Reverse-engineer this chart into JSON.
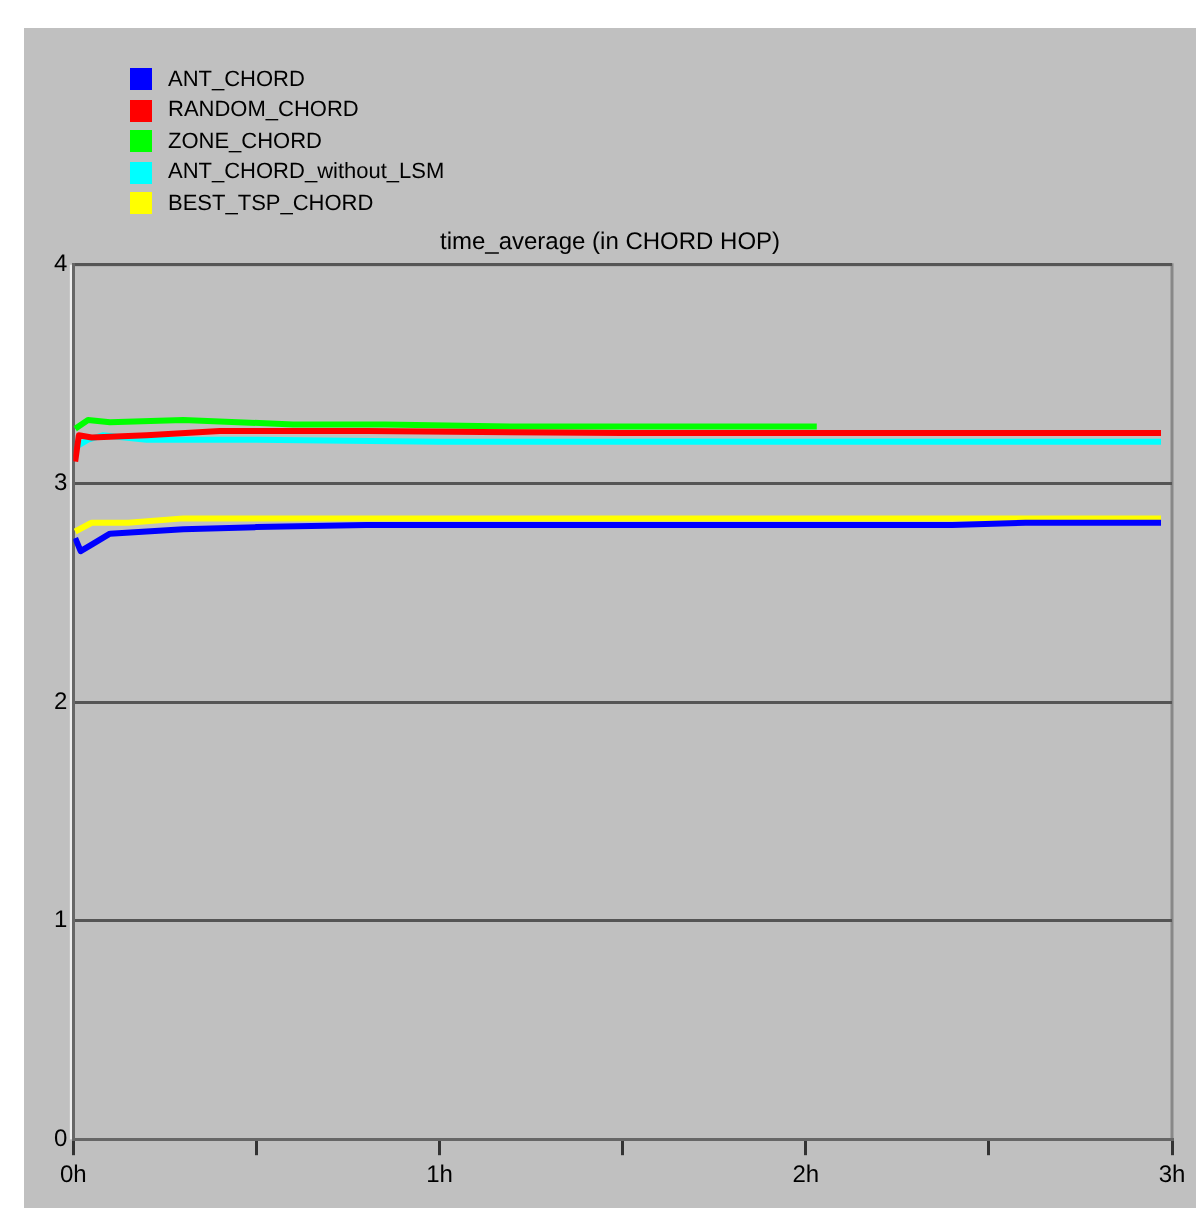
{
  "chart_data": {
    "type": "line",
    "title": "time_average (in CHORD HOP)",
    "legend": "top left",
    "grid": "y",
    "marker": "none",
    "line_style": "solid",
    "xlim": [
      0,
      3
    ],
    "xticks": [
      {
        "value": 0,
        "label": "0h"
      },
      {
        "value": 0.5,
        "label": null
      },
      {
        "value": 1,
        "label": "1h"
      },
      {
        "value": 1.5,
        "label": null
      },
      {
        "value": 2,
        "label": "2h"
      },
      {
        "value": 2.5,
        "label": null
      },
      {
        "value": 3,
        "label": "3h"
      }
    ],
    "ylim": [
      0,
      4
    ],
    "yticks": [
      0,
      1,
      2,
      3,
      4
    ],
    "series": [
      {
        "name": "ANT_CHORD",
        "color": "#0000ff",
        "x": [
          0.005,
          0.02,
          0.05,
          0.1,
          0.2,
          0.3,
          0.5,
          0.8,
          2.4,
          2.6,
          2.97
        ],
        "values": [
          2.75,
          2.69,
          2.72,
          2.77,
          2.78,
          2.79,
          2.8,
          2.81,
          2.81,
          2.82,
          2.82
        ]
      },
      {
        "name": "RANDOM_CHORD",
        "color": "#ff0000",
        "x": [
          0.005,
          0.015,
          0.05,
          0.2,
          0.4,
          0.8,
          1.5,
          2.97
        ],
        "values": [
          3.1,
          3.22,
          3.21,
          3.22,
          3.24,
          3.24,
          3.23,
          3.23
        ]
      },
      {
        "name": "ZONE_CHORD",
        "color": "#00ff00",
        "x": [
          0.005,
          0.04,
          0.1,
          0.3,
          0.6,
          0.85,
          1.2,
          2.03
        ],
        "values": [
          3.25,
          3.29,
          3.28,
          3.29,
          3.27,
          3.27,
          3.26,
          3.26
        ]
      },
      {
        "name": "ANT_CHORD_without_LSM",
        "color": "#00ffff",
        "x": [
          0.01,
          0.04,
          0.08,
          0.2,
          0.5,
          1.0,
          2.97
        ],
        "values": [
          3.17,
          3.2,
          3.22,
          3.2,
          3.2,
          3.19,
          3.19
        ]
      },
      {
        "name": "BEST_TSP_CHORD",
        "color": "#ffff00",
        "x": [
          0.005,
          0.05,
          0.15,
          0.3,
          0.6,
          1.0,
          2.97
        ],
        "values": [
          2.78,
          2.82,
          2.82,
          2.84,
          2.84,
          2.84,
          2.84
        ]
      }
    ]
  }
}
